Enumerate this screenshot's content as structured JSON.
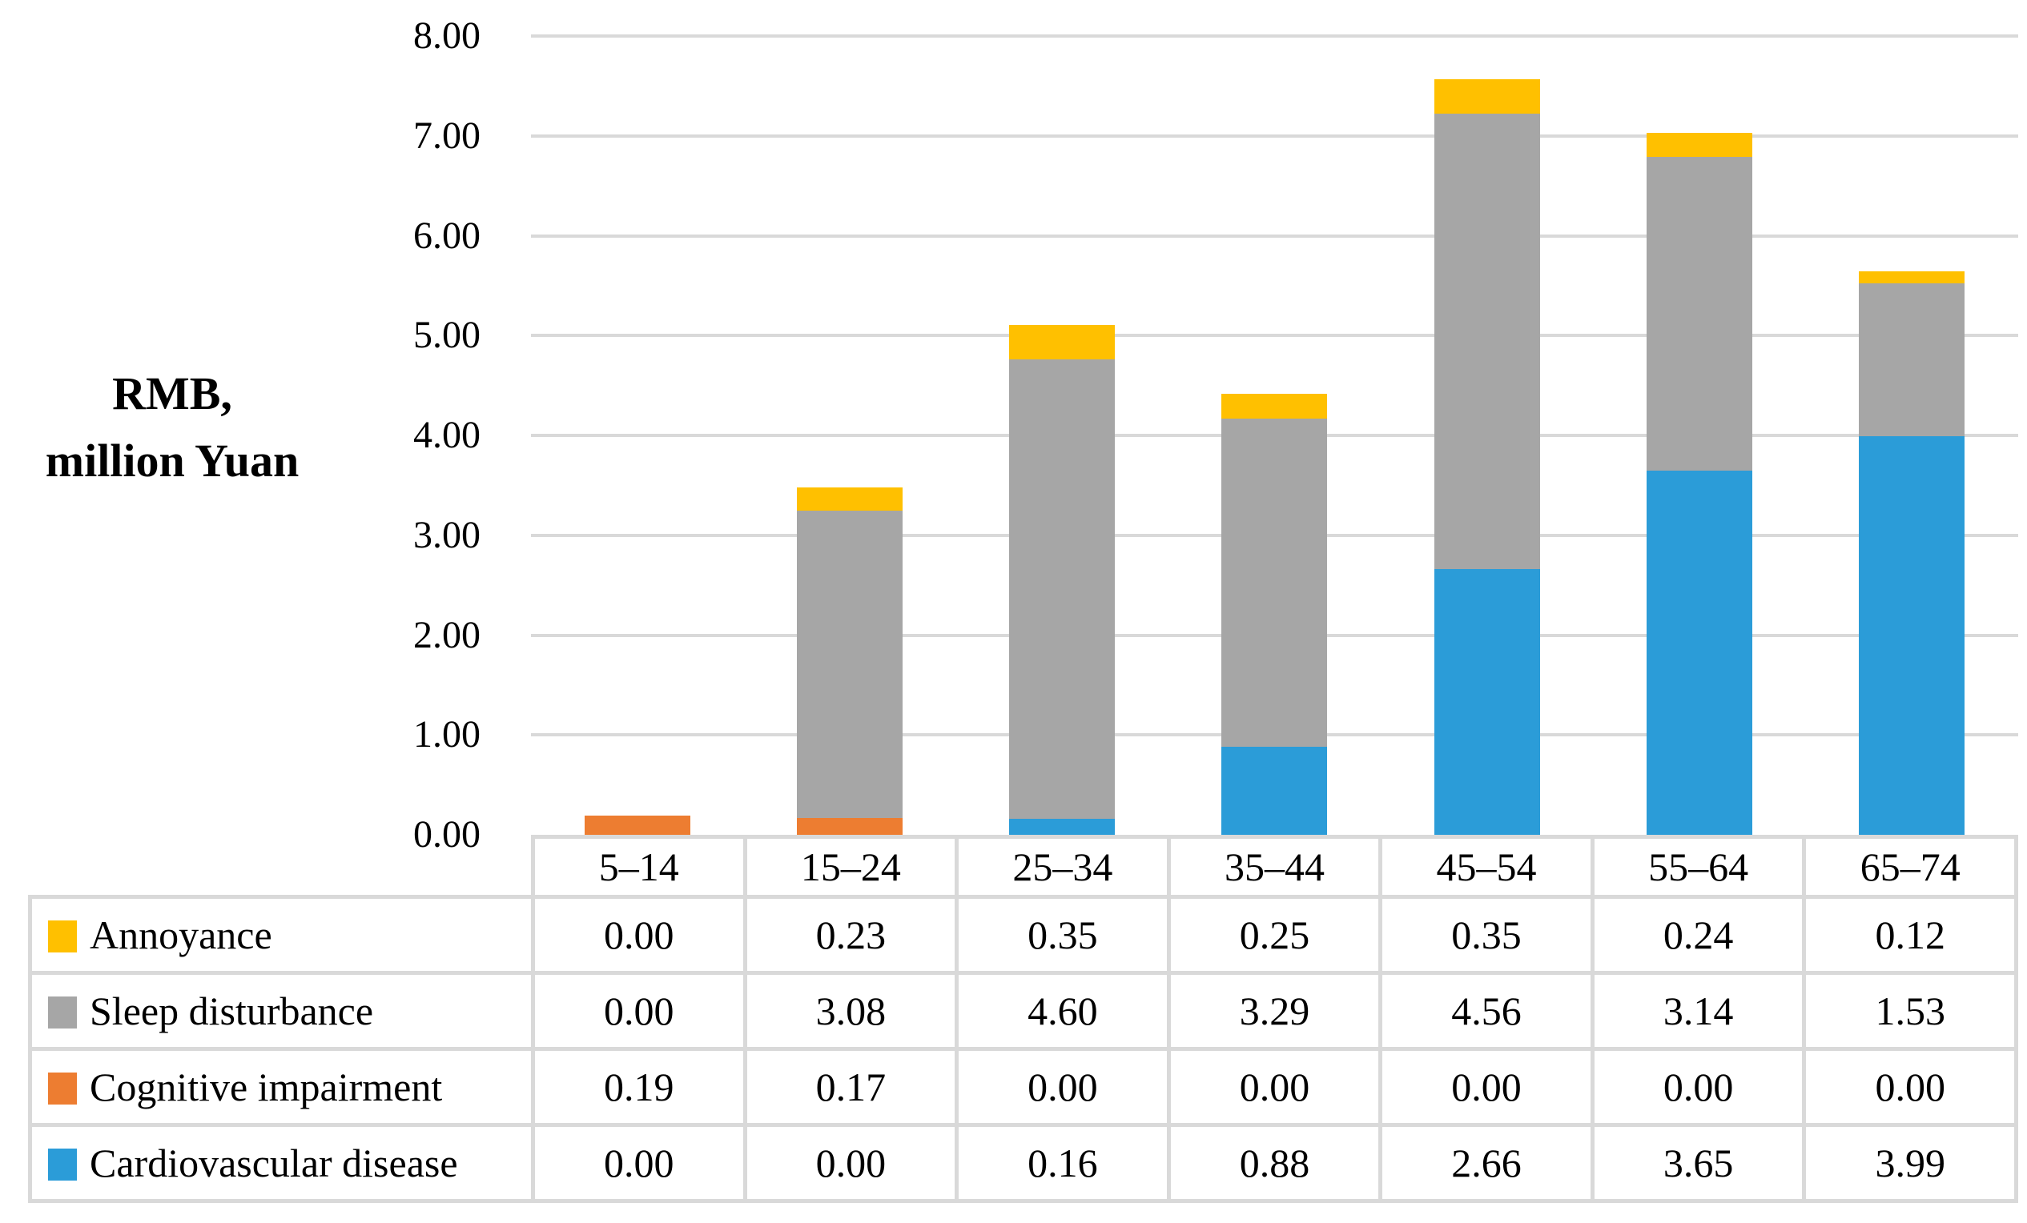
{
  "chart_data": {
    "type": "bar",
    "stacked": true,
    "title": "",
    "xlabel": "",
    "ylabel": "RMB, million Yuan",
    "ylabel_lines": [
      "RMB,",
      "million Yuan"
    ],
    "ylim": [
      0,
      8
    ],
    "y_ticks": [
      "8.00",
      "7.00",
      "6.00",
      "5.00",
      "4.00",
      "3.00",
      "2.00",
      "1.00",
      "0.00"
    ],
    "grid": true,
    "gridline_color": "#D9D9D9",
    "table_border_color": "#D9D9D9",
    "legend_position": "table-rows-left",
    "categories": [
      "5–14",
      "15–24",
      "25–34",
      "35–44",
      "45–54",
      "55–64",
      "65–74"
    ],
    "series": [
      {
        "name": "Annoyance",
        "color": "#FFC000",
        "values": [
          "0.00",
          "0.23",
          "0.35",
          "0.25",
          "0.35",
          "0.24",
          "0.12"
        ]
      },
      {
        "name": "Sleep disturbance",
        "color": "#A6A6A6",
        "values": [
          "0.00",
          "3.08",
          "4.60",
          "3.29",
          "4.56",
          "3.14",
          "1.53"
        ]
      },
      {
        "name": "Cognitive impairment",
        "color": "#ED7D31",
        "values": [
          "0.19",
          "0.17",
          "0.00",
          "0.00",
          "0.00",
          "0.00",
          "0.00"
        ]
      },
      {
        "name": "Cardiovascular disease",
        "color": "#2B9CD8",
        "values": [
          "0.00",
          "0.00",
          "0.16",
          "0.88",
          "2.66",
          "3.65",
          "3.99"
        ]
      }
    ],
    "stack_order_bottom_to_top": [
      "Cardiovascular disease",
      "Cognitive impairment",
      "Sleep disturbance",
      "Annoyance"
    ]
  }
}
